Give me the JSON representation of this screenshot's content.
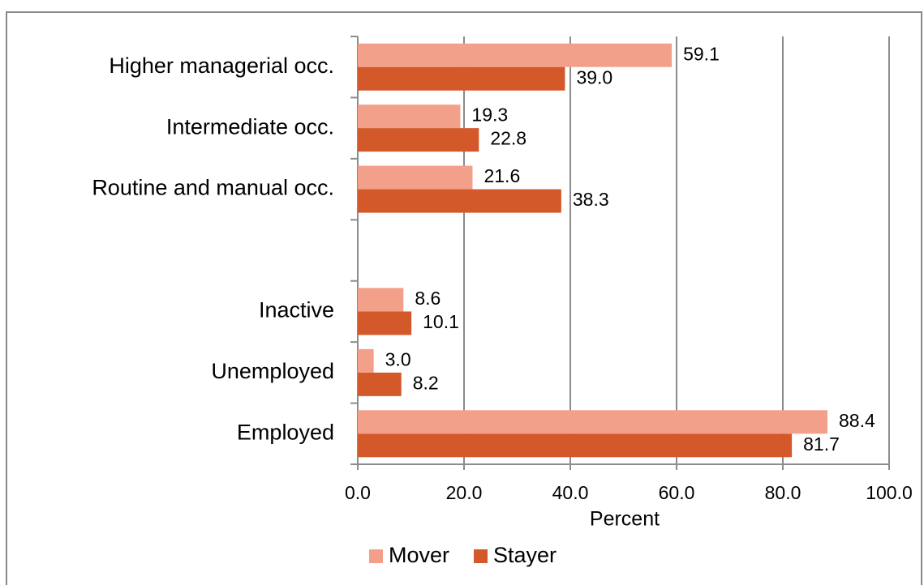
{
  "chart_data": {
    "type": "hbar",
    "categories": [
      "Higher managerial occ.",
      "Intermediate occ.",
      "Routine and manual occ.",
      null,
      "Inactive",
      "Unemployed",
      "Employed"
    ],
    "series": [
      {
        "name": "Mover",
        "color": "#f3a08b",
        "values": [
          59.1,
          19.3,
          21.6,
          null,
          8.6,
          3.0,
          88.4
        ],
        "value_labels": [
          "59.1",
          "19.3",
          "21.6",
          null,
          "8.6",
          "3.0",
          "88.4"
        ]
      },
      {
        "name": "Stayer",
        "color": "#d3592a",
        "values": [
          39.0,
          22.8,
          38.3,
          null,
          10.1,
          8.2,
          81.7
        ],
        "value_labels": [
          "39.0",
          "22.8",
          "38.3",
          null,
          "10.1",
          "8.2",
          "81.7"
        ]
      }
    ],
    "xlabel": "Percent",
    "xlim": [
      0,
      100
    ],
    "xticks": [
      {
        "value": 0,
        "label": "0.0"
      },
      {
        "value": 20,
        "label": "20.0"
      },
      {
        "value": 40,
        "label": "40.0"
      },
      {
        "value": 60,
        "label": "60.0"
      },
      {
        "value": 80,
        "label": "80.0"
      },
      {
        "value": 100,
        "label": "100.0"
      }
    ],
    "grid": true,
    "legend": "bottom"
  }
}
